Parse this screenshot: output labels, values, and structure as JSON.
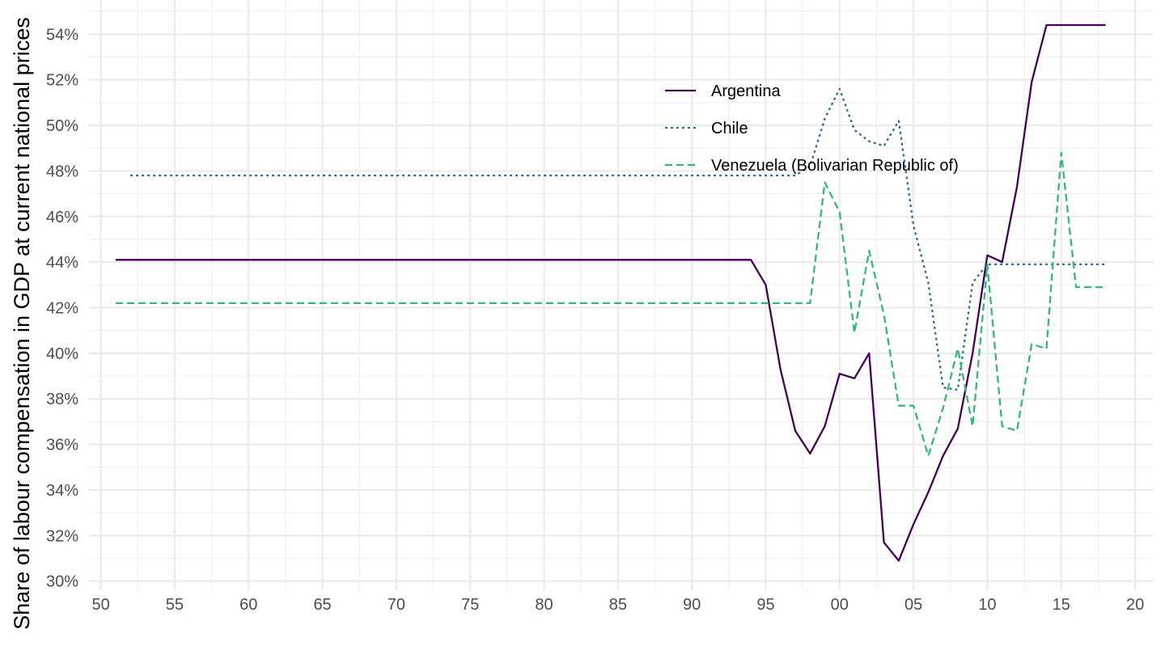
{
  "chart_data": {
    "type": "line",
    "title": "",
    "xlabel": "",
    "ylabel": "Share of labour compensation in GDP at current national prices",
    "x_tick_labels": [
      "50",
      "55",
      "60",
      "65",
      "70",
      "75",
      "80",
      "85",
      "90",
      "95",
      "00",
      "05",
      "10",
      "15",
      "20"
    ],
    "x_ticks": [
      1950,
      1955,
      1960,
      1965,
      1970,
      1975,
      1980,
      1985,
      1990,
      1995,
      2000,
      2005,
      2010,
      2015,
      2020
    ],
    "y_tick_labels": [
      "30%",
      "32%",
      "34%",
      "36%",
      "38%",
      "40%",
      "42%",
      "44%",
      "46%",
      "48%",
      "50%",
      "52%",
      "54%"
    ],
    "y_ticks": [
      30,
      32,
      34,
      36,
      38,
      40,
      42,
      44,
      46,
      48,
      50,
      52,
      54
    ],
    "xlim": [
      1949.2,
      2021.2
    ],
    "ylim": [
      29.6,
      55.5
    ],
    "grid": true,
    "legend_position": "top-right",
    "series": [
      {
        "name": "Argentina",
        "color": "#440154",
        "dash": "solid",
        "x": [
          1951,
          1994,
          1995,
          1996,
          1997,
          1998,
          1999,
          2000,
          2001,
          2002,
          2003,
          2004,
          2005,
          2006,
          2007,
          2008,
          2009,
          2010,
          2011,
          2012,
          2013,
          2014,
          2018
        ],
        "values": [
          44.1,
          44.1,
          43.0,
          39.3,
          36.6,
          35.6,
          36.8,
          39.1,
          38.9,
          40.0,
          31.7,
          30.9,
          32.5,
          33.9,
          35.5,
          36.7,
          40.0,
          44.3,
          44.0,
          47.3,
          51.9,
          54.4,
          54.4
        ]
      },
      {
        "name": "Chile",
        "color": "#31688e",
        "dash": "dotted",
        "x": [
          1952,
          1997,
          1998,
          1999,
          2000,
          2001,
          2002,
          2003,
          2004,
          2005,
          2006,
          2007,
          2008,
          2009,
          2010,
          2018
        ],
        "values": [
          47.8,
          47.8,
          48.2,
          50.3,
          51.6,
          49.8,
          49.3,
          49.1,
          50.2,
          45.6,
          43.1,
          38.5,
          38.4,
          43.1,
          43.9,
          43.9
        ]
      },
      {
        "name": "Venezuela (Bolivarian Republic of)",
        "color": "#35b779",
        "dash": "dashed",
        "x": [
          1951,
          1998,
          1999,
          2000,
          2001,
          2002,
          2003,
          2004,
          2005,
          2006,
          2007,
          2008,
          2009,
          2010,
          2011,
          2012,
          2013,
          2014,
          2015,
          2016,
          2018
        ],
        "values": [
          42.2,
          42.2,
          47.5,
          46.2,
          40.9,
          44.5,
          41.7,
          37.7,
          37.7,
          35.5,
          37.6,
          40.2,
          36.8,
          43.9,
          36.8,
          36.6,
          40.4,
          40.2,
          48.8,
          42.9,
          42.9
        ]
      }
    ]
  }
}
